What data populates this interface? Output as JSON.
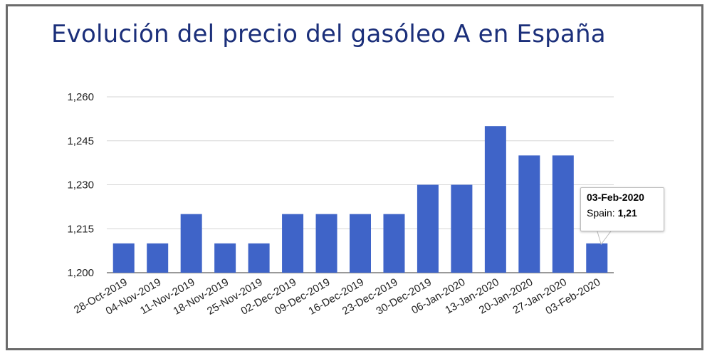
{
  "chart_data": {
    "type": "bar",
    "title": "Evolución del precio del gasóleo A en España",
    "categories": [
      "28-Oct-2019",
      "04-Nov-2019",
      "11-Nov-2019",
      "18-Nov-2019",
      "25-Nov-2019",
      "02-Dec-2019",
      "09-Dec-2019",
      "16-Dec-2019",
      "23-Dec-2019",
      "30-Dec-2019",
      "06-Jan-2020",
      "13-Jan-2020",
      "20-Jan-2020",
      "27-Jan-2020",
      "03-Feb-2020"
    ],
    "series": [
      {
        "name": "Spain",
        "values": [
          1.21,
          1.21,
          1.22,
          1.21,
          1.21,
          1.22,
          1.22,
          1.22,
          1.22,
          1.23,
          1.23,
          1.25,
          1.24,
          1.24,
          1.21
        ]
      }
    ],
    "ylim": [
      1.2,
      1.26
    ],
    "yticks": [
      1.2,
      1.215,
      1.23,
      1.245,
      1.26
    ],
    "ytick_labels": [
      "1,200",
      "1,215",
      "1,230",
      "1,245",
      "1,260"
    ],
    "grid": true,
    "bar_color": "#3f64c8",
    "title_color": "#1b2f7a",
    "tooltip": {
      "date": "03-Feb-2020",
      "label": "Spain:",
      "value": "1,21"
    }
  }
}
